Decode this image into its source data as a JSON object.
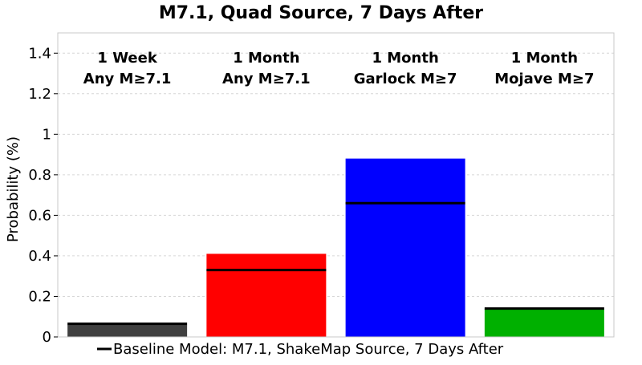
{
  "chart_data": {
    "type": "bar",
    "title": "M7.1, Quad Source, 7 Days After",
    "xlabel": "",
    "ylabel": "Probability (%)",
    "ylim": [
      0,
      1.5
    ],
    "yticks": [
      0,
      0.2,
      0.4,
      0.6,
      0.8,
      1,
      1.2,
      1.4
    ],
    "grid": true,
    "categories": [
      [
        "1 Week",
        "Any M≥7.1"
      ],
      [
        "1 Month",
        "Any M≥7.1"
      ],
      [
        "1 Month",
        "Garlock M≥7"
      ],
      [
        "1 Month",
        "Mojave M≥7"
      ]
    ],
    "values": [
      0.06,
      0.41,
      0.88,
      0.14
    ],
    "colors": [
      "#404040",
      "#ff0000",
      "#0000ff",
      "#00b000"
    ],
    "baseline": {
      "name": "Baseline Model: M7.1, ShakeMap Source, 7 Days After",
      "values": [
        0.065,
        0.33,
        0.66,
        0.14
      ],
      "color": "#000000"
    },
    "legend_position": "bottom"
  }
}
